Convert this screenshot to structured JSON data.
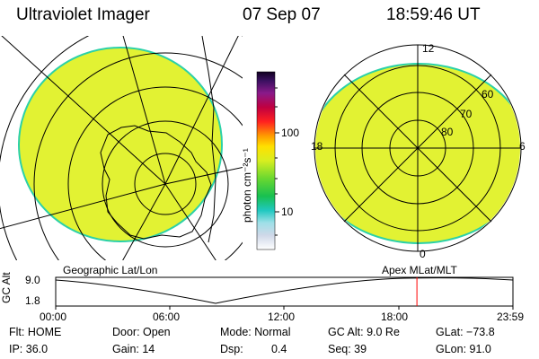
{
  "header": {
    "instrument": "Ultraviolet Imager",
    "date": "07 Sep 07",
    "time": "18:59:46 UT"
  },
  "colorbar": {
    "unit_label": "photon cm⁻²s⁻¹",
    "ticks": [
      "100",
      "10"
    ]
  },
  "left_panel": {
    "label": "Geographic Lat/Lon"
  },
  "right_panel": {
    "label": "Apex  MLat/MLT",
    "mlt_labels": {
      "top": "12",
      "left": "18",
      "right": "6",
      "bottom": "0"
    },
    "mlat_labels": [
      "60",
      "70",
      "80"
    ]
  },
  "altitude_strip": {
    "axis_label": "GC Alt",
    "y_ticks": [
      "9.0",
      "1.8"
    ],
    "time_ticks": [
      "00:00",
      "06:00",
      "12:00",
      "18:00",
      "23:59"
    ],
    "current_time_fraction": 0.79
  },
  "status": {
    "flt": "Flt: HOME",
    "door": "Door: Open",
    "mode": "Mode: Normal",
    "gc_alt": "GC Alt: 9.0 Re",
    "glat": "GLat: −73.8",
    "ip": "IP: 36.0",
    "gain": "Gain: 14",
    "dsp_label": "Dsp:",
    "dsp_value": "0.4",
    "seq": "Seq: 39",
    "glon": "GLon:  91.0"
  },
  "colors": {
    "aurora_fill": "#e2f233",
    "aurora_edge": "#2bd1a8",
    "time_marker": "#ff0000"
  }
}
